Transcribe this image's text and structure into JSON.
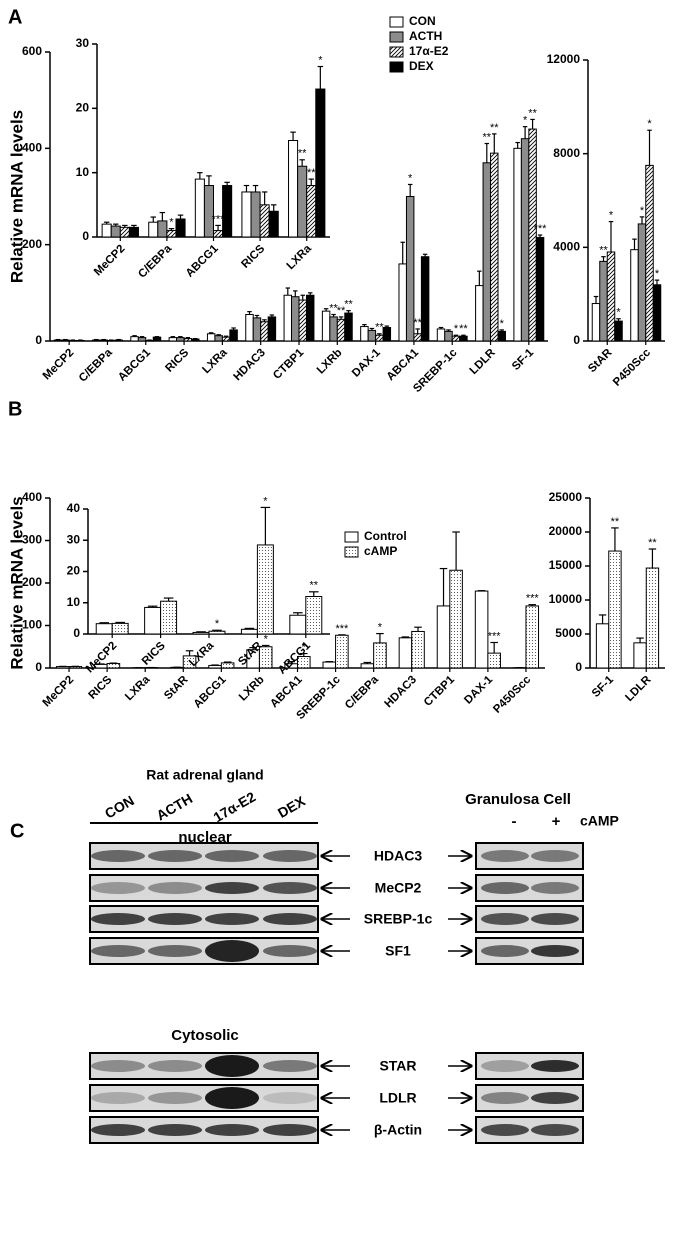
{
  "panel_labels": [
    "A",
    "B",
    "C"
  ],
  "chart_data": [
    {
      "type": "bar",
      "ylabel": "Relative mRNA levels",
      "categories": [
        "MeCP2",
        "C/EBPa",
        "ABCG1",
        "RICS",
        "LXRa",
        "HDAC3",
        "CTBP1",
        "LXRb",
        "DAX-1",
        "ABCA1",
        "SREBP-1c",
        "LDLR",
        "SF-1"
      ],
      "ylim": [
        0,
        600
      ],
      "yticks": [
        0,
        200,
        400,
        600
      ],
      "legend": "upper right",
      "series": [
        {
          "name": "CON",
          "color": "#ffffff",
          "values": [
            2,
            2,
            9,
            7,
            15,
            55,
            95,
            62,
            30,
            160,
            25,
            115,
            400
          ],
          "errors": [
            1,
            1,
            2,
            2,
            2,
            6,
            15,
            5,
            4,
            45,
            3,
            30,
            12
          ],
          "significance": [
            null,
            null,
            null,
            null,
            null,
            null,
            null,
            null,
            null,
            null,
            null,
            null,
            null
          ]
        },
        {
          "name": "ACTH",
          "color": "#8c8c8c",
          "values": [
            2,
            2,
            7,
            7,
            11,
            48,
            92,
            50,
            22,
            300,
            20,
            370,
            420
          ],
          "errors": [
            1,
            1,
            2,
            2,
            2,
            5,
            12,
            5,
            4,
            25,
            3,
            40,
            25
          ],
          "significance": [
            null,
            null,
            null,
            null,
            null,
            null,
            null,
            "**",
            null,
            "*",
            null,
            "**",
            "*"
          ]
        },
        {
          "name": "17α-E2",
          "color": "#ffffff",
          "pattern": "hatch",
          "values": [
            1,
            1,
            1,
            5,
            8,
            40,
            85,
            45,
            12,
            15,
            10,
            390,
            440
          ],
          "errors": [
            1,
            1,
            1,
            2,
            2,
            4,
            10,
            5,
            3,
            10,
            2,
            40,
            20
          ],
          "significance": [
            null,
            null,
            null,
            null,
            null,
            null,
            null,
            "**",
            "**",
            "**",
            "*",
            "**",
            "**"
          ]
        },
        {
          "name": "DEX",
          "color": "#000000",
          "values": [
            1,
            2,
            8,
            4,
            23,
            50,
            95,
            58,
            28,
            175,
            10,
            20,
            215
          ],
          "errors": [
            1,
            1,
            1,
            1,
            4,
            4,
            5,
            5,
            3,
            5,
            2,
            3,
            5
          ],
          "significance": [
            null,
            null,
            null,
            null,
            null,
            null,
            null,
            "**",
            null,
            null,
            "**",
            "*",
            "***"
          ]
        }
      ]
    },
    {
      "type": "bar",
      "categories": [
        "MeCP2",
        "C/EBPa",
        "ABCG1",
        "RICS",
        "LXRa"
      ],
      "ylim": [
        0,
        30
      ],
      "yticks": [
        0,
        10,
        20,
        30
      ],
      "series": [
        {
          "name": "CON",
          "color": "#ffffff",
          "values": [
            2,
            2.3,
            9,
            7,
            15
          ],
          "errors": [
            0.3,
            0.8,
            1,
            1,
            1.3
          ],
          "significance": [
            null,
            null,
            null,
            null,
            null
          ]
        },
        {
          "name": "ACTH",
          "color": "#8c8c8c",
          "values": [
            1.7,
            2.5,
            8,
            7,
            11
          ],
          "errors": [
            0.3,
            1.3,
            1.5,
            1,
            1
          ],
          "significance": [
            null,
            null,
            null,
            null,
            "**"
          ]
        },
        {
          "name": "17α-E2",
          "color": "#ffffff",
          "pattern": "hatch",
          "values": [
            1.5,
            1,
            1,
            5,
            8
          ],
          "errors": [
            0.3,
            0.3,
            0.8,
            2,
            1
          ],
          "significance": [
            null,
            "*",
            "***",
            null,
            "**"
          ]
        },
        {
          "name": "DEX",
          "color": "#000000",
          "values": [
            1.5,
            2.8,
            8,
            4,
            23
          ],
          "errors": [
            0.3,
            0.6,
            0.5,
            1,
            3.5
          ],
          "significance": [
            null,
            null,
            null,
            null,
            "*"
          ]
        }
      ]
    },
    {
      "type": "bar",
      "categories": [
        "StAR",
        "P450Scc"
      ],
      "ylim": [
        0,
        12000
      ],
      "yticks": [
        0,
        4000,
        8000,
        12000
      ],
      "series": [
        {
          "name": "CON",
          "color": "#ffffff",
          "values": [
            1600,
            3900
          ],
          "errors": [
            300,
            450
          ],
          "significance": [
            null,
            null
          ]
        },
        {
          "name": "ACTH",
          "color": "#8c8c8c",
          "values": [
            3400,
            5000
          ],
          "errors": [
            200,
            300
          ],
          "significance": [
            "**",
            "*"
          ]
        },
        {
          "name": "17α-E2",
          "color": "#ffffff",
          "pattern": "hatch",
          "values": [
            3800,
            7500
          ],
          "errors": [
            1300,
            1500
          ],
          "significance": [
            "*",
            "*"
          ]
        },
        {
          "name": "DEX",
          "color": "#000000",
          "values": [
            850,
            2400
          ],
          "errors": [
            100,
            200
          ],
          "significance": [
            "*",
            "*"
          ]
        }
      ]
    },
    {
      "type": "bar",
      "ylabel": "Relative mRNA levels",
      "categories": [
        "MeCP2",
        "RICS",
        "LXRa",
        "StAR",
        "ABCG1",
        "LXRb",
        "ABCA1",
        "SREBP-1c",
        "C/EBPa",
        "HDAC3",
        "CTBP1",
        "DAX-1",
        "P450Scc"
      ],
      "ylim": [
        0,
        400
      ],
      "yticks": [
        0,
        100,
        200,
        300,
        400
      ],
      "legend": "upper right",
      "series": [
        {
          "name": "Control",
          "color": "#ffffff",
          "values": [
            3.3,
            8.5,
            0.5,
            1.5,
            6,
            43,
            10,
            14,
            10,
            71,
            146,
            181,
            0.5
          ],
          "errors": [
            0.5,
            1,
            0.2,
            0.3,
            1,
            5,
            5,
            1,
            3,
            2,
            88,
            1,
            0.2
          ],
          "significance": [
            null,
            null,
            null,
            null,
            null,
            null,
            null,
            null,
            null,
            null,
            null,
            null,
            null
          ]
        },
        {
          "name": "cAMP",
          "color": "#ffffff",
          "pattern": "dots",
          "values": [
            3.4,
            10.5,
            0.9,
            28.5,
            12,
            50,
            27,
            77,
            59,
            86,
            230,
            35,
            146
          ],
          "errors": [
            0.5,
            1,
            0.2,
            12,
            2,
            3,
            7,
            1,
            22,
            10,
            90,
            25,
            3
          ],
          "significance": [
            null,
            null,
            null,
            null,
            null,
            "*",
            "*",
            "***",
            "*",
            null,
            null,
            "***",
            "***"
          ]
        }
      ]
    },
    {
      "type": "bar",
      "categories": [
        "MeCP2",
        "RICS",
        "LXRa",
        "StAR",
        "ABCG1"
      ],
      "ylim": [
        0,
        40
      ],
      "yticks": [
        0,
        10,
        20,
        30,
        40
      ],
      "series": [
        {
          "name": "Control",
          "color": "#ffffff",
          "values": [
            3.3,
            8.5,
            0.5,
            1.5,
            6
          ],
          "errors": [
            0.3,
            0.4,
            0.2,
            0.3,
            0.8
          ],
          "significance": [
            null,
            null,
            null,
            null,
            null
          ]
        },
        {
          "name": "cAMP",
          "color": "#ffffff",
          "pattern": "dots",
          "values": [
            3.4,
            10.5,
            0.9,
            28.5,
            12
          ],
          "errors": [
            0.3,
            1,
            0.3,
            12,
            1.5
          ],
          "significance": [
            null,
            null,
            "*",
            "*",
            "**"
          ]
        }
      ]
    },
    {
      "type": "bar",
      "categories": [
        "SF-1",
        "LDLR"
      ],
      "ylim": [
        0,
        25000
      ],
      "yticks": [
        0,
        5000,
        10000,
        15000,
        20000,
        25000
      ],
      "series": [
        {
          "name": "Control",
          "color": "#ffffff",
          "values": [
            6500,
            3700
          ],
          "errors": [
            1300,
            700
          ],
          "significance": [
            null,
            null
          ]
        },
        {
          "name": "cAMP",
          "color": "#ffffff",
          "pattern": "dots",
          "values": [
            17200,
            14700
          ],
          "errors": [
            3400,
            2800
          ],
          "significance": [
            "**",
            "**"
          ]
        }
      ]
    }
  ],
  "blot": {
    "title": "Rat adrenal gland",
    "lanes": [
      "CON",
      "ACTH",
      "17α-E2",
      "DEX"
    ],
    "sections": [
      "nuclear",
      "Cytosolic"
    ],
    "proteins": [
      "HDAC3",
      "MeCP2",
      "SREBP-1c",
      "SF1",
      "STAR",
      "LDLR",
      "β-Actin"
    ],
    "cell_title": "Granulosa Cell",
    "treatments": [
      "-",
      "+"
    ],
    "treatment_label": "cAMP"
  }
}
